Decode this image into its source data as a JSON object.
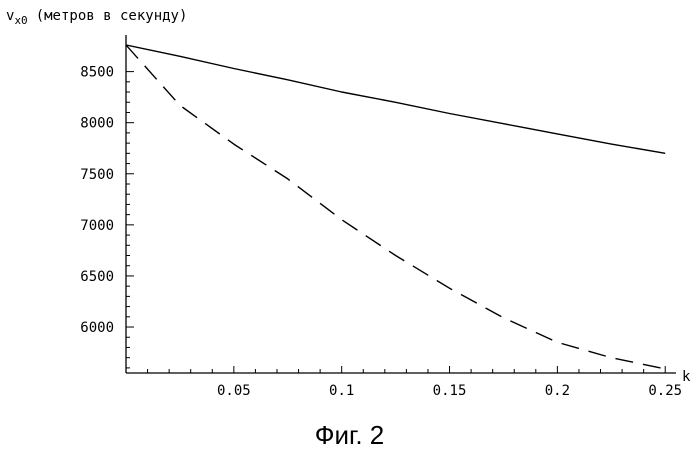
{
  "caption": "Фиг. 2",
  "chart_data": {
    "type": "line",
    "title": "",
    "ylabel_main": "v",
    "ylabel_sub": "x0",
    "ylabel_rest": "(метров в секунду)",
    "xlabel": "k",
    "xlim": [
      0,
      0.255
    ],
    "ylim": [
      5550,
      8780
    ],
    "x_ticks": [
      {
        "value": 0.05,
        "label": "0.05"
      },
      {
        "value": 0.1,
        "label": "0.1"
      },
      {
        "value": 0.15,
        "label": "0.15"
      },
      {
        "value": 0.2,
        "label": "0.2"
      },
      {
        "value": 0.25,
        "label": "0.25"
      }
    ],
    "y_ticks": [
      {
        "value": 6000,
        "label": "6000"
      },
      {
        "value": 6500,
        "label": "6500"
      },
      {
        "value": 7000,
        "label": "7000"
      },
      {
        "value": 7500,
        "label": "7500"
      },
      {
        "value": 8000,
        "label": "8000"
      },
      {
        "value": 8500,
        "label": "8500"
      }
    ],
    "grid": false,
    "series": [
      {
        "style": "solid",
        "x": [
          0,
          0.025,
          0.05,
          0.075,
          0.1,
          0.125,
          0.15,
          0.175,
          0.2,
          0.225,
          0.25
        ],
        "y": [
          8760,
          8650,
          8530,
          8420,
          8300,
          8200,
          8090,
          7990,
          7890,
          7790,
          7700
        ]
      },
      {
        "style": "dashed",
        "x": [
          0,
          0.025,
          0.05,
          0.075,
          0.1,
          0.125,
          0.15,
          0.175,
          0.2,
          0.225,
          0.25
        ],
        "y": [
          8760,
          8170,
          7790,
          7450,
          7050,
          6700,
          6380,
          6090,
          5850,
          5700,
          5590
        ]
      }
    ]
  }
}
